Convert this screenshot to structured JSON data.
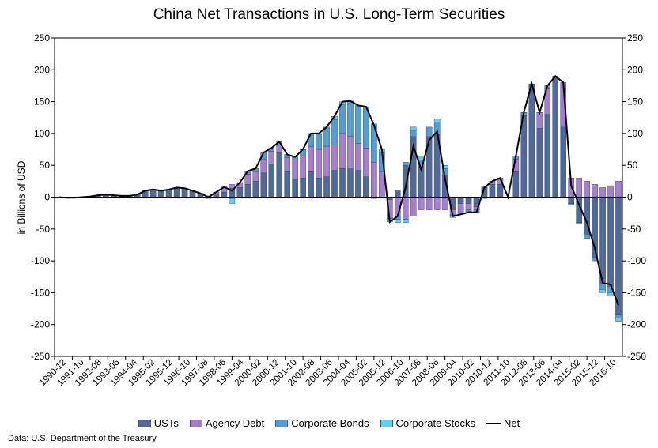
{
  "chart_data": {
    "type": "bar",
    "title": "China Net Transactions in U.S. Long-Term Securities",
    "ylabel": "in Billions of USD",
    "ylim": [
      -250,
      250
    ],
    "yticks": [
      250,
      200,
      150,
      100,
      50,
      0,
      -50,
      -100,
      -150,
      -200,
      -250
    ],
    "grid": false,
    "legend_position": "bottom",
    "source": "Data: U.S. Department of the Treasury",
    "x_tick_labels": [
      "1990-12",
      "1991-10",
      "1992-08",
      "1993-06",
      "1994-04",
      "1995-02",
      "1995-12",
      "1996-10",
      "1997-08",
      "1998-06",
      "1999-04",
      "2000-02",
      "2000-12",
      "2001-10",
      "2002-08",
      "2003-06",
      "2004-04",
      "2005-02",
      "2005-12",
      "2006-10",
      "2007-08",
      "2008-06",
      "2009-04",
      "2010-02",
      "2010-12",
      "2011-10",
      "2012-08",
      "2013-06",
      "2014-04",
      "2015-02",
      "2015-12",
      "2016-10"
    ],
    "series": [
      {
        "name": "USTs",
        "color": "#4f6a9a",
        "values": [
          0,
          -1,
          -1,
          0,
          1,
          3,
          4,
          3,
          2,
          2,
          4,
          10,
          12,
          10,
          12,
          15,
          14,
          10,
          6,
          -2,
          5,
          8,
          14,
          15,
          20,
          25,
          38,
          52,
          70,
          40,
          28,
          30,
          40,
          30,
          32,
          42,
          45,
          46,
          42,
          32,
          -2,
          0,
          -4,
          10,
          50,
          95,
          48,
          95,
          98,
          35,
          -20,
          -10,
          -10,
          -15,
          15,
          20,
          20,
          0,
          40,
          128,
          178,
          108,
          130,
          190,
          110,
          -10,
          -40,
          -60,
          -95,
          -135,
          -140,
          -185
        ]
      },
      {
        "name": "Agency Debt",
        "color": "#a57ed1",
        "values": [
          0,
          0,
          0,
          0,
          0,
          0,
          0,
          0,
          0,
          0,
          0,
          0,
          0,
          0,
          0,
          0,
          0,
          0,
          0,
          2,
          3,
          8,
          6,
          8,
          16,
          15,
          22,
          20,
          12,
          22,
          30,
          35,
          40,
          45,
          48,
          40,
          55,
          50,
          42,
          45,
          55,
          40,
          -30,
          -30,
          -35,
          -30,
          -20,
          -20,
          -20,
          -20,
          -8,
          -15,
          -10,
          -5,
          2,
          5,
          10,
          0,
          20,
          0,
          0,
          25,
          40,
          0,
          70,
          30,
          30,
          25,
          20,
          15,
          18,
          25
        ]
      },
      {
        "name": "Corporate Bonds",
        "color": "#4f9ed8",
        "values": [
          0,
          0,
          0,
          0,
          0,
          0,
          0,
          0,
          0,
          0,
          0,
          0,
          0,
          0,
          0,
          0,
          0,
          0,
          0,
          0,
          0,
          0,
          -2,
          0,
          5,
          5,
          10,
          5,
          5,
          5,
          5,
          10,
          20,
          25,
          30,
          40,
          45,
          55,
          60,
          65,
          60,
          30,
          0,
          -5,
          5,
          10,
          10,
          15,
          20,
          10,
          -2,
          -2,
          -2,
          -2,
          -2,
          0,
          0,
          0,
          5,
          5,
          0,
          0,
          5,
          0,
          0,
          -2,
          -2,
          -5,
          -5,
          -10,
          -10,
          -5
        ]
      },
      {
        "name": "Corporate Stocks",
        "color": "#5fd0f5",
        "values": [
          0,
          0,
          0,
          0,
          0,
          0,
          0,
          0,
          0,
          0,
          0,
          0,
          0,
          0,
          0,
          0,
          0,
          0,
          0,
          0,
          0,
          0,
          -8,
          0,
          0,
          0,
          0,
          0,
          0,
          0,
          0,
          0,
          0,
          0,
          0,
          5,
          5,
          0,
          0,
          0,
          0,
          5,
          -5,
          -5,
          -5,
          5,
          5,
          0,
          5,
          5,
          -2,
          0,
          -2,
          -2,
          0,
          0,
          0,
          0,
          0,
          0,
          0,
          0,
          0,
          0,
          0,
          0,
          0,
          0,
          0,
          -5,
          -5,
          -5
        ]
      },
      {
        "name": "Net",
        "color": "#000000",
        "values": [
          0,
          -1,
          -1,
          0,
          1,
          3,
          4,
          3,
          2,
          2,
          4,
          10,
          12,
          10,
          12,
          15,
          14,
          10,
          6,
          0,
          8,
          16,
          10,
          23,
          41,
          45,
          70,
          77,
          87,
          67,
          63,
          75,
          100,
          100,
          110,
          127,
          150,
          151,
          144,
          142,
          113,
          75,
          -39,
          -30,
          15,
          80,
          43,
          90,
          103,
          30,
          -30,
          -27,
          -24,
          -24,
          15,
          25,
          30,
          0,
          65,
          133,
          178,
          133,
          175,
          190,
          180,
          18,
          -12,
          -40,
          -80,
          -135,
          -137,
          -170
        ]
      }
    ]
  },
  "legend": [
    {
      "label": "USTs",
      "color": "#4f6a9a",
      "type": "bar"
    },
    {
      "label": "Agency Debt",
      "color": "#a57ed1",
      "type": "bar"
    },
    {
      "label": "Corporate Bonds",
      "color": "#4f9ed8",
      "type": "bar"
    },
    {
      "label": "Corporate Stocks",
      "color": "#5fd0f5",
      "type": "bar"
    },
    {
      "label": "Net",
      "color": "#000000",
      "type": "line"
    }
  ]
}
